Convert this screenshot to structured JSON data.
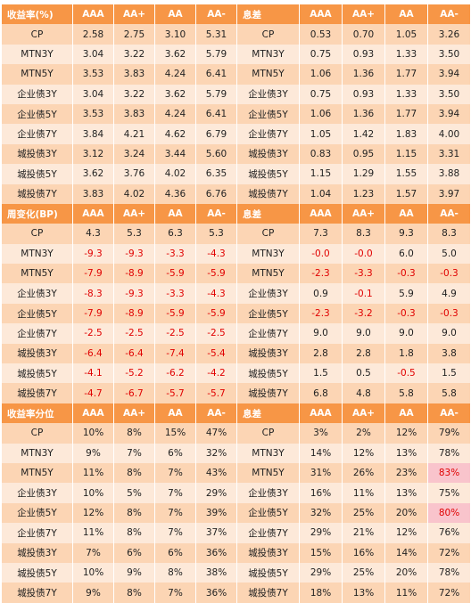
{
  "table": {
    "sections": [
      {
        "header": [
          "收益率(%)",
          "AAA",
          "AA+",
          "AA",
          "AA-",
          "息差",
          "AAA",
          "AA+",
          "AA",
          "AA-"
        ],
        "rows": [
          [
            "CP",
            "2.58",
            "2.75",
            "3.10",
            "5.31",
            "CP",
            "0.53",
            "0.70",
            "1.05",
            "3.26"
          ],
          [
            "MTN3Y",
            "3.04",
            "3.22",
            "3.62",
            "5.79",
            "MTN3Y",
            "0.75",
            "0.93",
            "1.33",
            "3.50"
          ],
          [
            "MTN5Y",
            "3.53",
            "3.83",
            "4.24",
            "6.41",
            "MTN5Y",
            "1.06",
            "1.36",
            "1.77",
            "3.94"
          ],
          [
            "企业债3Y",
            "3.04",
            "3.22",
            "3.62",
            "5.79",
            "企业债3Y",
            "0.75",
            "0.93",
            "1.33",
            "3.50"
          ],
          [
            "企业债5Y",
            "3.53",
            "3.83",
            "4.24",
            "6.41",
            "企业债5Y",
            "1.06",
            "1.36",
            "1.77",
            "3.94"
          ],
          [
            "企业债7Y",
            "3.84",
            "4.21",
            "4.62",
            "6.79",
            "企业债7Y",
            "1.05",
            "1.42",
            "1.83",
            "4.00"
          ],
          [
            "城投债3Y",
            "3.12",
            "3.24",
            "3.44",
            "5.60",
            "城投债3Y",
            "0.83",
            "0.95",
            "1.15",
            "3.31"
          ],
          [
            "城投债5Y",
            "3.62",
            "3.76",
            "4.02",
            "6.35",
            "城投债5Y",
            "1.15",
            "1.29",
            "1.55",
            "3.88"
          ],
          [
            "城投债7Y",
            "3.83",
            "4.02",
            "4.36",
            "6.76",
            "城投债7Y",
            "1.04",
            "1.23",
            "1.57",
            "3.97"
          ]
        ]
      },
      {
        "header": [
          "周变化(BP)",
          "AAA",
          "AA+",
          "AA",
          "AA-",
          "息差",
          "AAA",
          "AA+",
          "AA",
          "AA-"
        ],
        "rows": [
          [
            "CP",
            "4.3",
            "5.3",
            "6.3",
            "5.3",
            "CP",
            "7.3",
            "8.3",
            "9.3",
            "8.3"
          ],
          [
            "MTN3Y",
            "-9.3",
            "-9.3",
            "-3.3",
            "-4.3",
            "MTN3Y",
            "-0.0",
            "-0.0",
            "6.0",
            "5.0"
          ],
          [
            "MTN5Y",
            "-7.9",
            "-8.9",
            "-5.9",
            "-5.9",
            "MTN5Y",
            "-2.3",
            "-3.3",
            "-0.3",
            "-0.3"
          ],
          [
            "企业债3Y",
            "-8.3",
            "-9.3",
            "-3.3",
            "-4.3",
            "企业债3Y",
            "0.9",
            "-0.1",
            "5.9",
            "4.9"
          ],
          [
            "企业债5Y",
            "-7.9",
            "-8.9",
            "-5.9",
            "-5.9",
            "企业债5Y",
            "-2.3",
            "-3.2",
            "-0.3",
            "-0.3"
          ],
          [
            "企业债7Y",
            "-2.5",
            "-2.5",
            "-2.5",
            "-2.5",
            "企业债7Y",
            "9.0",
            "9.0",
            "9.0",
            "9.0"
          ],
          [
            "城投债3Y",
            "-6.4",
            "-6.4",
            "-7.4",
            "-5.4",
            "城投债3Y",
            "2.8",
            "2.8",
            "1.8",
            "3.8"
          ],
          [
            "城投债5Y",
            "-4.1",
            "-5.2",
            "-6.2",
            "-4.2",
            "城投债5Y",
            "1.5",
            "0.5",
            "-0.5",
            "1.5"
          ],
          [
            "城投债7Y",
            "-4.7",
            "-6.7",
            "-5.7",
            "-5.7",
            "城投债7Y",
            "6.8",
            "4.8",
            "5.8",
            "5.8"
          ]
        ]
      },
      {
        "header": [
          "收益率分位",
          "AAA",
          "AA+",
          "AA",
          "AA-",
          "息差",
          "AAA",
          "AA+",
          "AA",
          "AA-"
        ],
        "rows": [
          [
            "CP",
            "10%",
            "8%",
            "15%",
            "47%",
            "CP",
            "3%",
            "2%",
            "12%",
            "79%"
          ],
          [
            "MTN3Y",
            "9%",
            "7%",
            "6%",
            "32%",
            "MTN3Y",
            "14%",
            "12%",
            "13%",
            "78%"
          ],
          [
            "MTN5Y",
            "11%",
            "8%",
            "7%",
            "43%",
            "MTN5Y",
            "31%",
            "26%",
            "23%",
            "83%"
          ],
          [
            "企业债3Y",
            "10%",
            "5%",
            "7%",
            "29%",
            "企业债3Y",
            "16%",
            "11%",
            "13%",
            "75%"
          ],
          [
            "企业债5Y",
            "12%",
            "8%",
            "7%",
            "39%",
            "企业债5Y",
            "32%",
            "25%",
            "20%",
            "80%"
          ],
          [
            "企业债7Y",
            "11%",
            "8%",
            "7%",
            "37%",
            "企业债7Y",
            "29%",
            "21%",
            "12%",
            "76%"
          ],
          [
            "城投债3Y",
            "7%",
            "6%",
            "6%",
            "36%",
            "城投债3Y",
            "15%",
            "16%",
            "14%",
            "72%"
          ],
          [
            "城投债5Y",
            "10%",
            "9%",
            "8%",
            "38%",
            "城投债5Y",
            "29%",
            "25%",
            "20%",
            "78%"
          ],
          [
            "城投债7Y",
            "9%",
            "8%",
            "7%",
            "36%",
            "城投债7Y",
            "18%",
            "13%",
            "11%",
            "72%"
          ]
        ]
      }
    ]
  }
}
